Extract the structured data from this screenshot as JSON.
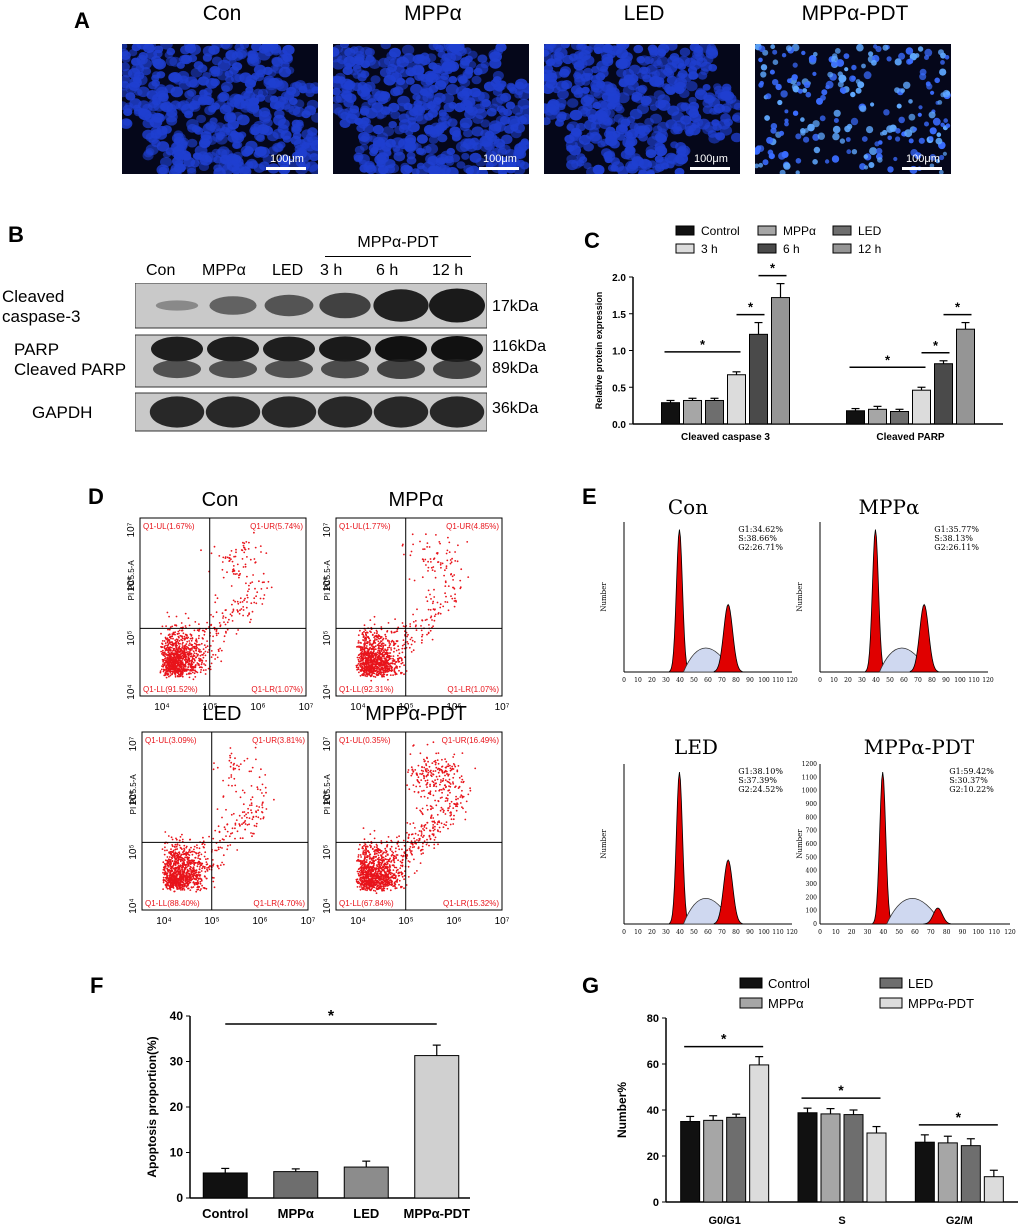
{
  "panels": {
    "A": "A",
    "B": "B",
    "C": "C",
    "D": "D",
    "E": "E",
    "F": "F",
    "G": "G"
  },
  "panel_a": {
    "titles": [
      "Con",
      "MPPα",
      "LED",
      "MPPα-PDT"
    ],
    "scale_label": "100μm",
    "stain_color": "#1f3fd0"
  },
  "panel_b": {
    "group_label": "MPPα-PDT",
    "lanes": [
      "Con",
      "MPPα",
      "LED",
      "3 h",
      "6 h",
      "12 h"
    ],
    "rows": [
      {
        "label": [
          "Cleaved",
          "caspase-3"
        ],
        "kda": [
          "17kDa"
        ],
        "intensity": [
          0.15,
          0.45,
          0.55,
          0.7,
          0.95,
          1.0
        ]
      },
      {
        "label": [
          "PARP",
          "Cleaved PARP"
        ],
        "kda": [
          "116kDa",
          "89kDa"
        ],
        "intensity": [
          0.85,
          0.85,
          0.85,
          0.9,
          1.0,
          1.0
        ]
      },
      {
        "label": [
          "GAPDH"
        ],
        "kda": [
          "36kDa"
        ],
        "intensity": [
          0.9,
          0.9,
          0.9,
          0.9,
          0.9,
          0.9
        ]
      }
    ]
  },
  "chart_data": [
    {
      "id": "C",
      "type": "bar",
      "ylabel": "Relative protein expression",
      "ylim": [
        0,
        2.0
      ],
      "yticks": [
        "0.0",
        "0.5",
        "1.0",
        "1.5",
        "2.0"
      ],
      "categories": [
        "Cleaved caspase 3",
        "Cleaved PARP"
      ],
      "series": [
        {
          "name": "Control",
          "values": [
            0.29,
            0.18
          ],
          "errors": [
            0.03,
            0.03
          ]
        },
        {
          "name": "MPPα",
          "values": [
            0.32,
            0.2
          ],
          "errors": [
            0.03,
            0.04
          ]
        },
        {
          "name": "LED",
          "values": [
            0.32,
            0.17
          ],
          "errors": [
            0.03,
            0.03
          ]
        },
        {
          "name": "3 h",
          "values": [
            0.67,
            0.46
          ],
          "errors": [
            0.04,
            0.04
          ]
        },
        {
          "name": "6 h",
          "values": [
            1.22,
            0.82
          ],
          "errors": [
            0.16,
            0.04
          ]
        },
        {
          "name": "12 h",
          "values": [
            1.72,
            1.29
          ],
          "errors": [
            0.19,
            0.09
          ]
        }
      ],
      "colors": [
        "#111111",
        "#a6a6a6",
        "#6e6e6e",
        "#dcdcdc",
        "#4a4a4a",
        "#959595"
      ],
      "significance": "*"
    },
    {
      "id": "F",
      "type": "bar",
      "ylabel": "Apoptosis proportion(%)",
      "ylim": [
        0,
        40
      ],
      "yticks": [
        "0",
        "10",
        "20",
        "30",
        "40"
      ],
      "categories": [
        "Control",
        "MPPα",
        "LED",
        "MPPα-PDT"
      ],
      "values": [
        5.5,
        5.8,
        6.8,
        31.3
      ],
      "errors": [
        1.0,
        0.6,
        1.3,
        2.3
      ],
      "colors": [
        "#111111",
        "#6e6e6e",
        "#8c8c8c",
        "#d0d0d0"
      ],
      "significance": "*"
    },
    {
      "id": "G",
      "type": "bar",
      "ylabel": "Number%",
      "ylim": [
        0,
        80
      ],
      "yticks": [
        "0",
        "20",
        "40",
        "60",
        "80"
      ],
      "categories": [
        "G0/G1",
        "S",
        "G2/M"
      ],
      "series": [
        {
          "name": "Control",
          "values": [
            35,
            38.8,
            26
          ],
          "errors": [
            2.2,
            2.0,
            3.2
          ]
        },
        {
          "name": "MPPα",
          "values": [
            35.5,
            38.3,
            25.7
          ],
          "errors": [
            2.0,
            2.3,
            2.9
          ]
        },
        {
          "name": "LED",
          "values": [
            36.8,
            38.0,
            24.5
          ],
          "errors": [
            1.4,
            2.0,
            3.0
          ]
        },
        {
          "name": "MPPα-PDT",
          "values": [
            59.6,
            30.0,
            11.0
          ],
          "errors": [
            3.6,
            2.8,
            2.8
          ]
        }
      ],
      "colors": [
        "#111111",
        "#a6a6a6",
        "#6e6e6e",
        "#dcdcdc"
      ],
      "significance": "*"
    }
  ],
  "panel_d": {
    "titles": [
      "Con",
      "MPPα",
      "LED",
      "MPPα-PDT"
    ],
    "ylabel": "PI PC5.5-A",
    "x_ticks": [
      "10⁴",
      "10⁵",
      "10⁶",
      "10⁷"
    ],
    "y_ticks": [
      "10⁴",
      "10⁵",
      "10⁶",
      "10⁷"
    ],
    "quadrants": [
      {
        "ul": "Q1-UL(1.67%)",
        "ur": "Q1-UR(5.74%)",
        "ll": "Q1-LL(91.52%)",
        "lr": "Q1-LR(1.07%)"
      },
      {
        "ul": "Q1-UL(1.77%)",
        "ur": "Q1-UR(4.85%)",
        "ll": "Q1-LL(92.31%)",
        "lr": "Q1-LR(1.07%)"
      },
      {
        "ul": "Q1-UL(3.09%)",
        "ur": "Q1-UR(3.81%)",
        "ll": "Q1-LL(88.40%)",
        "lr": "Q1-LR(4.70%)"
      },
      {
        "ul": "Q1-UL(0.35%)",
        "ur": "Q1-UR(16.49%)",
        "ll": "Q1-LL(67.84%)",
        "lr": "Q1-LR(15.32%)"
      }
    ],
    "dot_color": "#e8141b"
  },
  "panel_e": {
    "titles": [
      "Con",
      "MPPα",
      "LED",
      "MPPα-PDT"
    ],
    "ylabel": "Number",
    "x_ticks": [
      "0",
      "10",
      "20",
      "30",
      "40",
      "50",
      "60",
      "70",
      "80",
      "90",
      "100",
      "110",
      "120"
    ],
    "stats": [
      [
        "G1:34.62%",
        "S:38.66%",
        "G2:26.71%"
      ],
      [
        "G1:35.77%",
        "S:38.13%",
        "G2:26.11%"
      ],
      [
        "G1:38.10%",
        "S:37.39%",
        "G2:24.52%"
      ],
      [
        "G1:59.42%",
        "S:30.37%",
        "G2:10.22%"
      ]
    ],
    "y_ticks_last": [
      "0",
      "100",
      "200",
      "300",
      "400",
      "500",
      "600",
      "700",
      "800",
      "900",
      "1000",
      "1100",
      "1200"
    ]
  }
}
